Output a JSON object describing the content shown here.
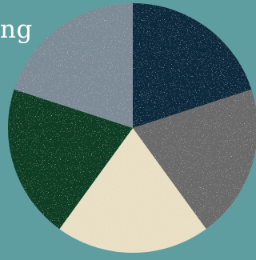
{
  "background_color": "#5f9ea0",
  "title_fragment": "ng",
  "chart_data": {
    "type": "pie",
    "title": "",
    "slices": [
      {
        "value": 20,
        "color": "#0f2a3d"
      },
      {
        "value": 20,
        "color": "#6b6b6b"
      },
      {
        "value": 20,
        "color": "#e8dfc4"
      },
      {
        "value": 20,
        "color": "#0b3d24"
      },
      {
        "value": 20,
        "color": "#7b8b96"
      }
    ]
  }
}
